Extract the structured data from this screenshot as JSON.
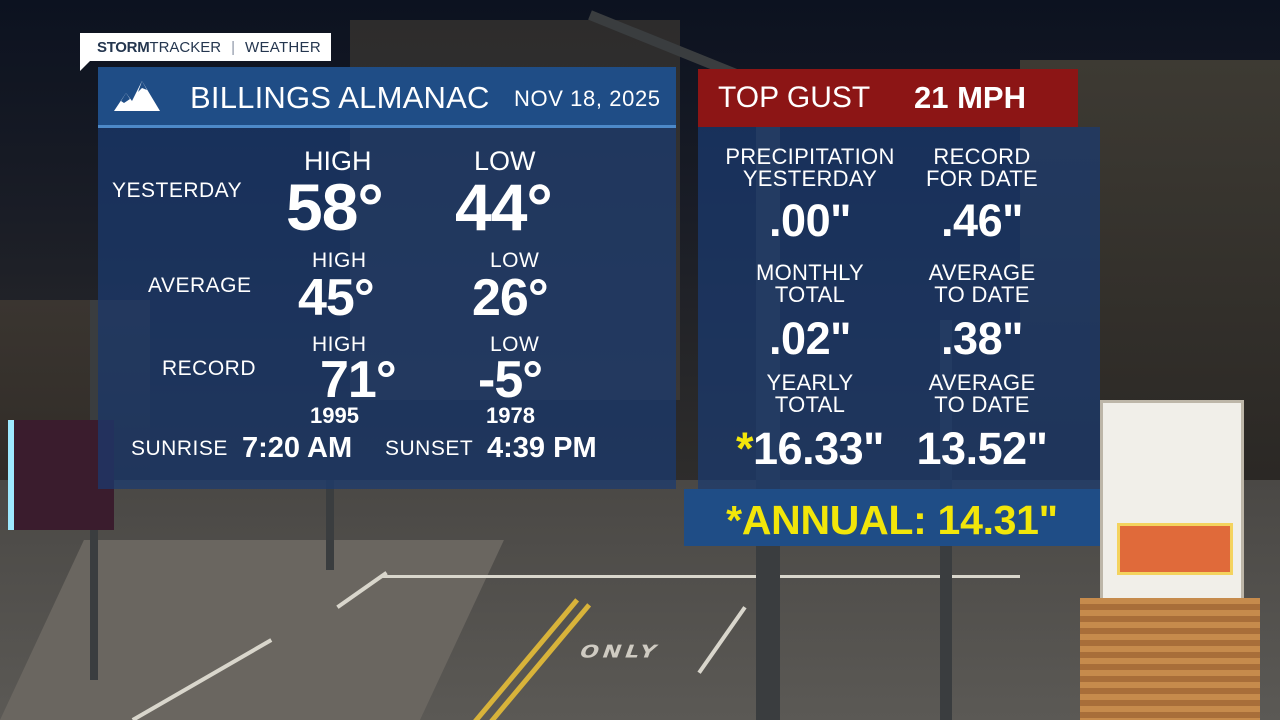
{
  "brand": {
    "storm": "STORM",
    "tracker": "TRACKER",
    "separator": "|",
    "weather": "WEATHER"
  },
  "header": {
    "title": "BILLINGS ALMANAC",
    "date": "NOV 18, 2025",
    "logo_icon": "mountain-icon"
  },
  "gust": {
    "label": "TOP GUST",
    "value": "21 MPH"
  },
  "yesterday": {
    "label": "YESTERDAY",
    "high_label": "HIGH",
    "high": "58°",
    "low_label": "LOW",
    "low": "44°"
  },
  "average": {
    "label": "AVERAGE",
    "high_label": "HIGH",
    "high": "45°",
    "low_label": "LOW",
    "low": "26°"
  },
  "record": {
    "label": "RECORD",
    "high_label": "HIGH",
    "high": "71°",
    "high_year": "1995",
    "low_label": "LOW",
    "low": "-5°",
    "low_year": "1978"
  },
  "sun": {
    "sunrise_label": "SUNRISE",
    "sunrise": "7:20 AM",
    "sunset_label": "SUNSET",
    "sunset": "4:39 PM"
  },
  "precip": {
    "yesterday": {
      "label1": "PRECIPITATION",
      "label2": "YESTERDAY",
      "value": ".00\""
    },
    "record": {
      "label1": "RECORD",
      "label2": "FOR DATE",
      "value": ".46\""
    },
    "monthly": {
      "label1": "MONTHLY",
      "label2": "TOTAL",
      "value": ".02\""
    },
    "monthly_avg": {
      "label1": "AVERAGE",
      "label2": "TO DATE",
      "value": ".38\""
    },
    "yearly": {
      "label1": "YEARLY",
      "label2": "TOTAL",
      "star": "*",
      "value": "16.33\""
    },
    "yearly_avg": {
      "label1": "AVERAGE",
      "label2": "TO DATE",
      "value": "13.52\""
    }
  },
  "annual": {
    "text": "*ANNUAL: 14.31\""
  },
  "scene": {
    "road_marking": "ONLY"
  },
  "colors": {
    "header_blue": "#1f4d86",
    "gust_red": "#8c1515",
    "highlight_yellow": "#f2e60a"
  }
}
